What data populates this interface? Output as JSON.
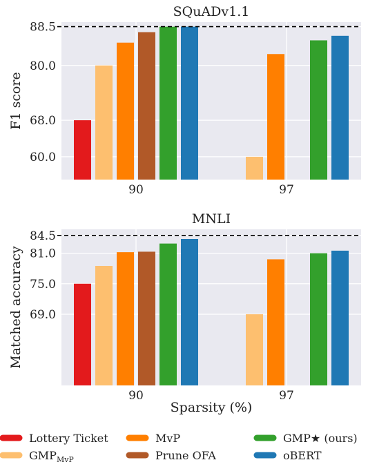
{
  "colors": {
    "panel_bg": "#e9e9f0",
    "grid": "#ffffff",
    "reference_line": "#000000"
  },
  "xlabel": "Sparsity (%)",
  "legend": {
    "placement": "bottom",
    "items": [
      {
        "label": "Lottery Ticket",
        "color": "#e31a1c"
      },
      {
        "label": "GMP",
        "sub": "MvP",
        "color": "#fdbf6f"
      },
      {
        "label": "MvP",
        "color": "#ff7f00"
      },
      {
        "label": "Prune OFA",
        "color": "#b15928"
      },
      {
        "label": "GMP★ (ours)",
        "color": "#33a02c"
      },
      {
        "label": "oBERT",
        "color": "#1f78b4"
      }
    ]
  },
  "chart_data": [
    {
      "type": "bar",
      "title": "SQuADv1.1",
      "xlabel": "",
      "ylabel": "F1 score",
      "categories": [
        "90",
        "97"
      ],
      "ylim": [
        55.0,
        89.5
      ],
      "yticks": [
        "60.0",
        "68.0",
        "80.0",
        "88.5"
      ],
      "reference_line": 88.5,
      "grid": true,
      "series": [
        {
          "name": "Lottery Ticket",
          "values": [
            68.0,
            null
          ]
        },
        {
          "name": "GMP_MvP",
          "values": [
            80.0,
            60.0
          ]
        },
        {
          "name": "MvP",
          "values": [
            85.0,
            82.5
          ]
        },
        {
          "name": "Prune OFA",
          "values": [
            87.3,
            null
          ]
        },
        {
          "name": "GMP★ (ours)",
          "values": [
            88.5,
            85.5
          ]
        },
        {
          "name": "oBERT",
          "values": [
            88.5,
            86.5
          ]
        }
      ]
    },
    {
      "type": "bar",
      "title": "MNLI",
      "xlabel": "Sparsity (%)",
      "ylabel": "Matched accuracy",
      "categories": [
        "90",
        "97"
      ],
      "ylim": [
        55.0,
        85.7
      ],
      "yticks": [
        "69.0",
        "75.0",
        "81.0",
        "84.5"
      ],
      "reference_line": 84.5,
      "grid": true,
      "series": [
        {
          "name": "Lottery Ticket",
          "values": [
            75.0,
            null
          ]
        },
        {
          "name": "GMP_MvP",
          "values": [
            78.5,
            69.0
          ]
        },
        {
          "name": "MvP",
          "values": [
            81.2,
            79.8
          ]
        },
        {
          "name": "Prune OFA",
          "values": [
            81.3,
            null
          ]
        },
        {
          "name": "GMP★ (ours)",
          "values": [
            82.9,
            81.0
          ]
        },
        {
          "name": "oBERT",
          "values": [
            83.8,
            81.5
          ]
        }
      ]
    }
  ]
}
